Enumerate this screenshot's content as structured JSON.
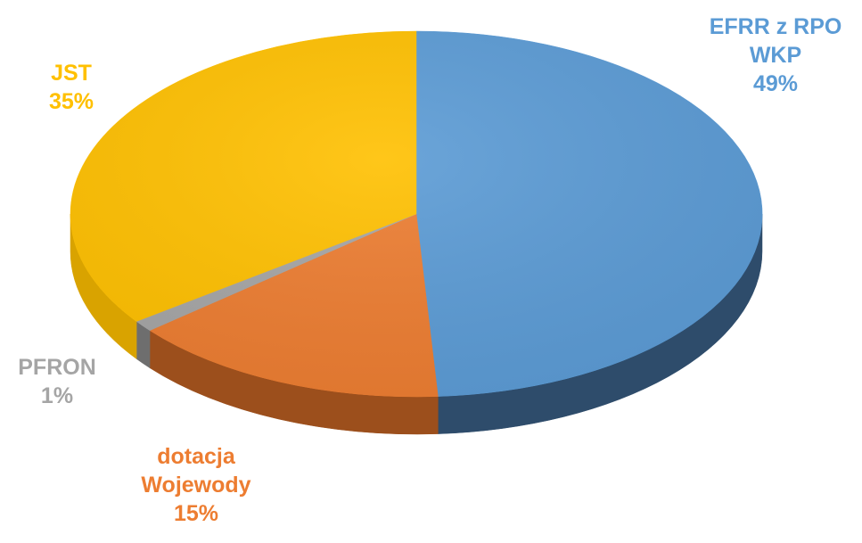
{
  "chart_data": {
    "type": "pie",
    "title": "",
    "slices": [
      {
        "label_lines": [
          "EFRR z RPO",
          "WKP"
        ],
        "value": 49,
        "value_label": "49%",
        "color": "#5B9BD5",
        "side_color": "#2E4C6B"
      },
      {
        "label_lines": [
          "dotacja",
          "Wojewody"
        ],
        "value": 15,
        "value_label": "15%",
        "color": "#ED7D31",
        "side_color": "#9C4F1C"
      },
      {
        "label_lines": [
          "PFRON"
        ],
        "value": 1,
        "value_label": "1%",
        "color": "#A5A5A5",
        "side_color": "#6E6E6E"
      },
      {
        "label_lines": [
          "JST"
        ],
        "value": 35,
        "value_label": "35%",
        "color": "#FFC000",
        "side_color": "#D9A300"
      }
    ],
    "legend": "none",
    "data_labels": "outside"
  }
}
